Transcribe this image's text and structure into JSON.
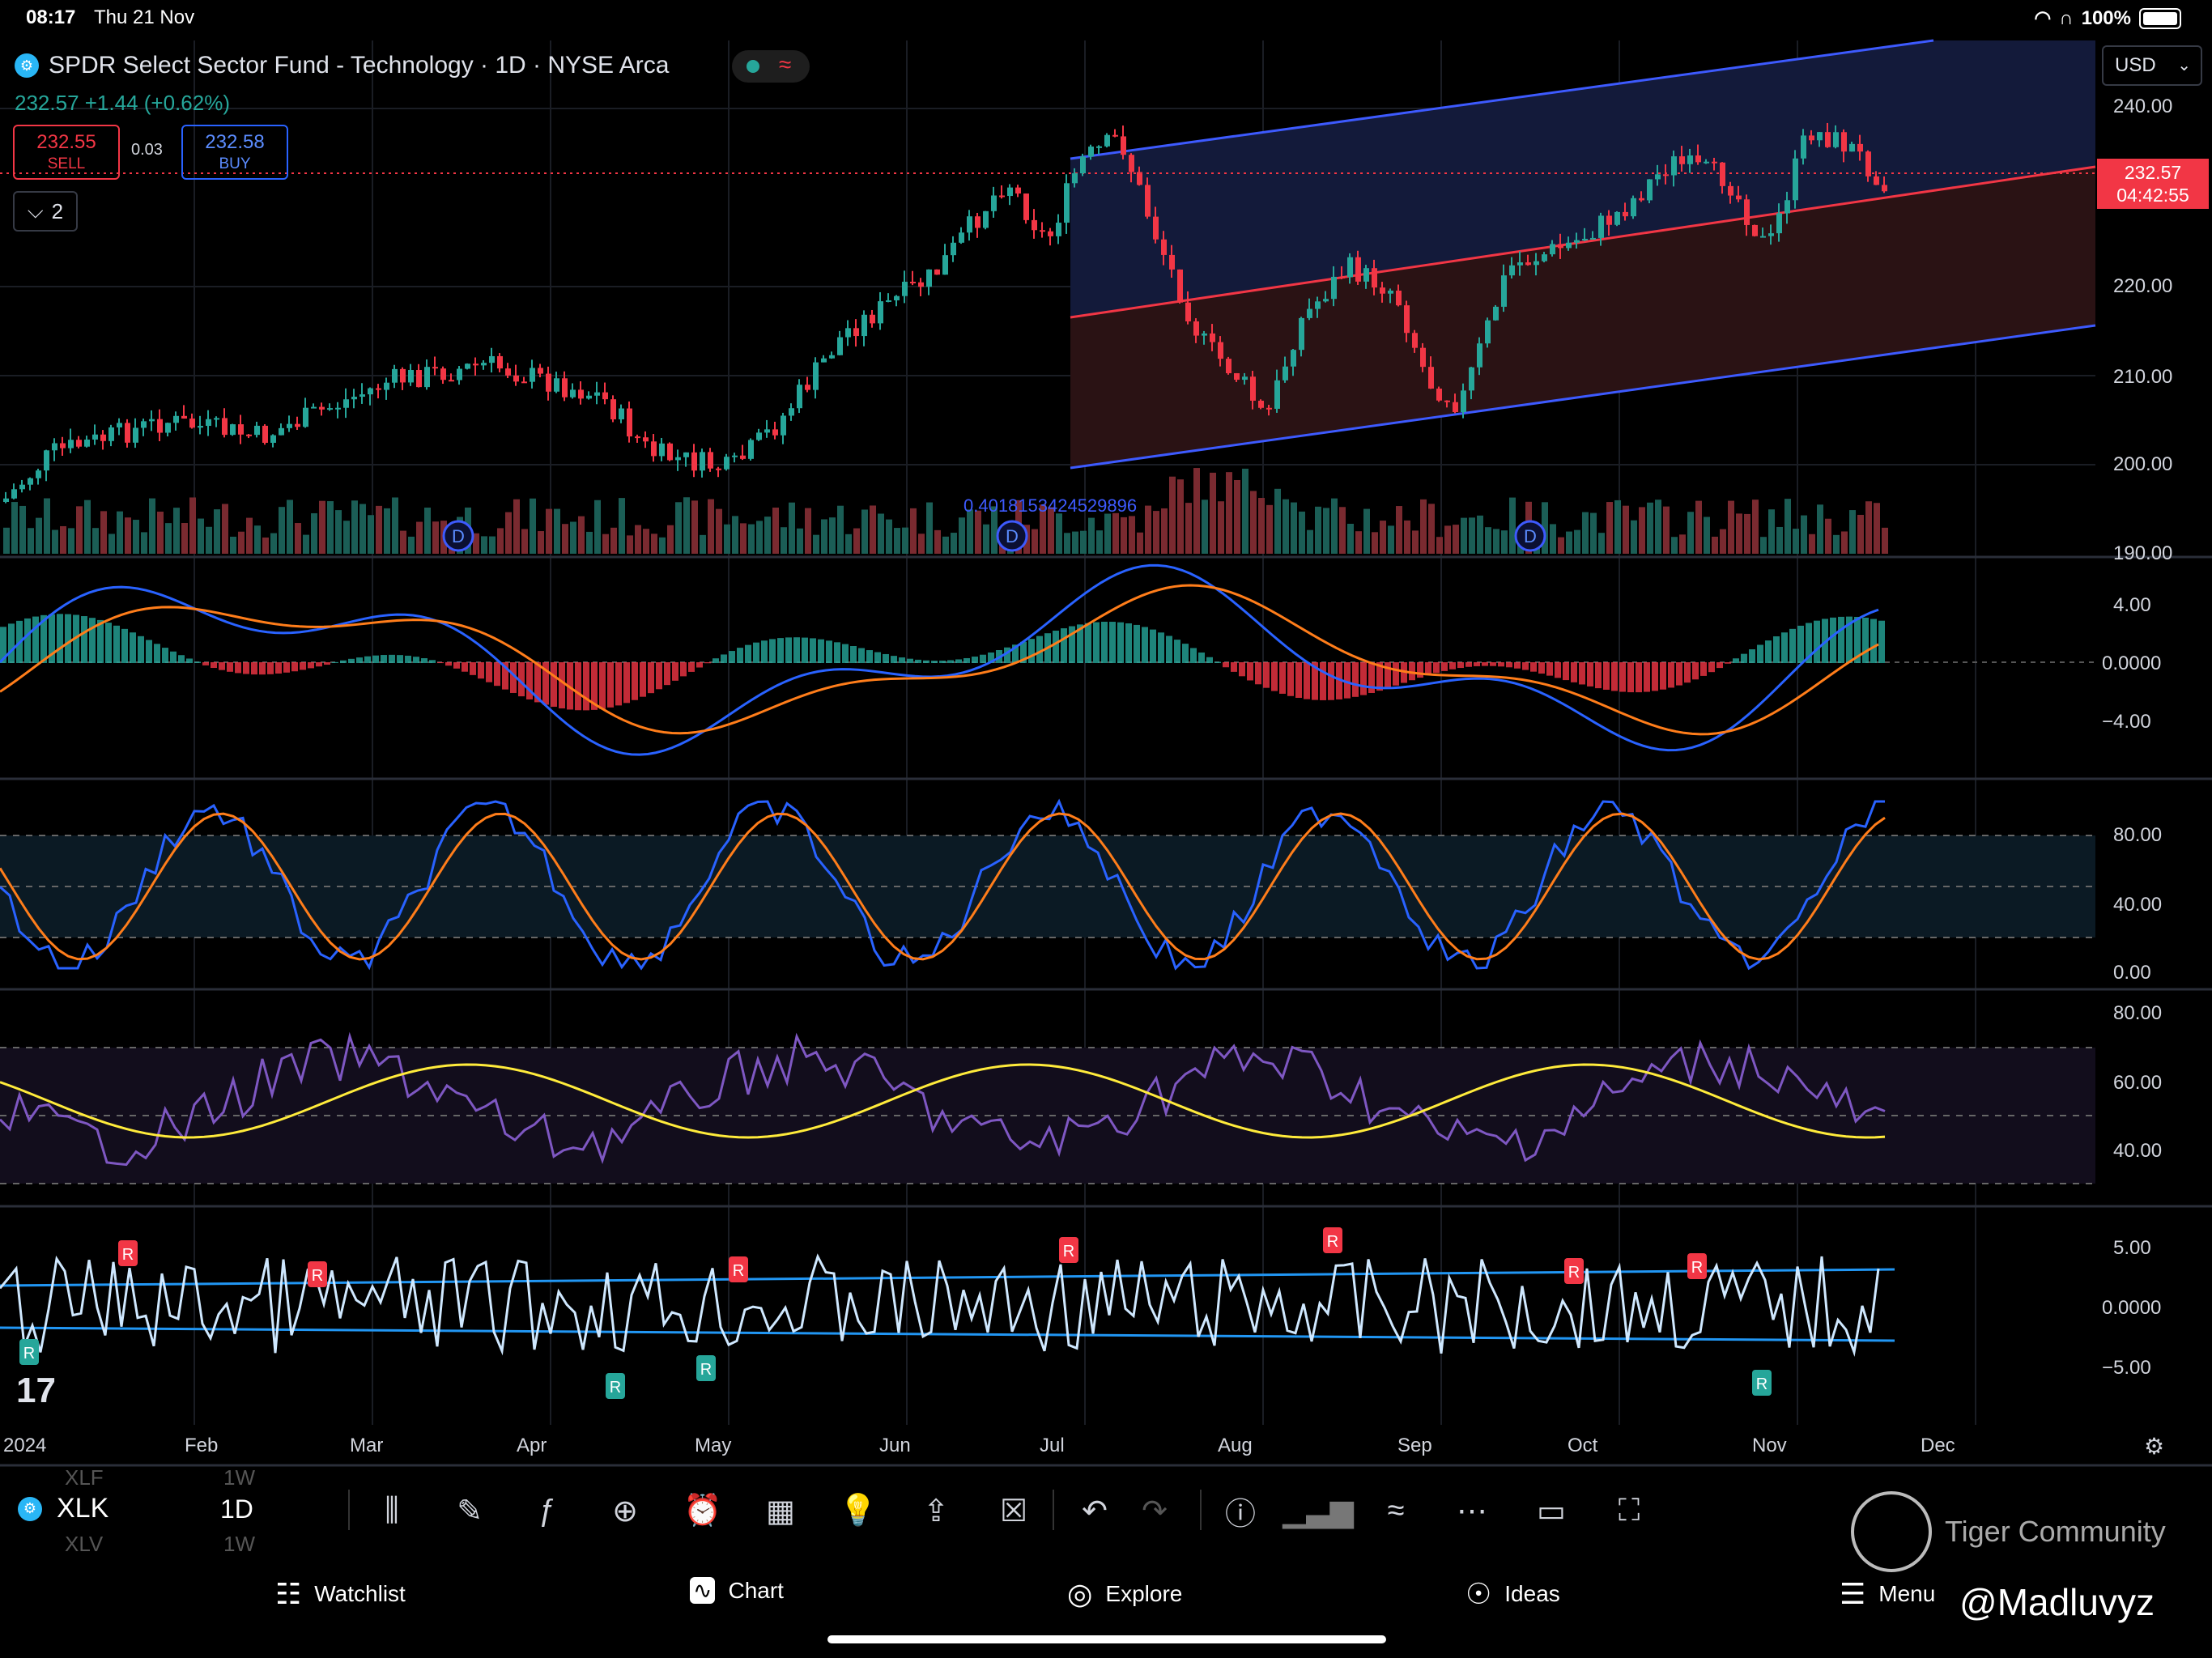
{
  "status_bar": {
    "time": "08:17",
    "date": "Thu 21 Nov",
    "battery": "100%"
  },
  "symbol_header": {
    "title": "SPDR Select Sector Fund - Technology · 1D · NYSE Arca",
    "price_line": "232.57  +1.44 (+0.62%)"
  },
  "quote": {
    "sell_price": "232.55",
    "sell_label": "SELL",
    "spread": "0.03",
    "buy_price": "232.58",
    "buy_label": "BUY",
    "collapsed_count": "2"
  },
  "currency": "USD",
  "last_price": {
    "price": "232.57",
    "countdown": "04:42:55"
  },
  "price_axis": [
    "240.00",
    "220.00",
    "210.00",
    "200.00",
    "190.00"
  ],
  "macd_axis": [
    "4.00",
    "0.0000",
    "−4.00"
  ],
  "stoch_axis": [
    "80.00",
    "40.00",
    "0.00"
  ],
  "rsi_axis": [
    "80.00",
    "60.00",
    "40.00"
  ],
  "osc_axis": [
    "5.00",
    "0.0000",
    "−5.00"
  ],
  "channel_label": "0.4018153424529896",
  "time_axis": [
    "2024",
    "Feb",
    "Mar",
    "Apr",
    "May",
    "Jun",
    "Jul",
    "Aug",
    "Sep",
    "Oct",
    "Nov",
    "Dec"
  ],
  "dividend_marker": "D",
  "signal_marker": "R",
  "toolbar": {
    "ticker": "XLK",
    "timeframe": "1D",
    "ghost_above": "XLF",
    "ghost_above_tf": "1W",
    "ghost_below": "XLV",
    "ghost_below_tf": "1W"
  },
  "tabs": {
    "watchlist": "Watchlist",
    "chart": "Chart",
    "explore": "Explore",
    "ideas": "Ideas",
    "menu": "Menu"
  },
  "watermark": {
    "community": "Tiger Community",
    "handle": "@Madluvyz"
  },
  "colors": {
    "up": "#26a69a",
    "down": "#f23645",
    "channel": "#3d5afe",
    "macd": "#2962ff",
    "signal": "#ff7d1a",
    "rsi_ma": "#ffeb3b",
    "rsi": "#7e57c2"
  }
}
